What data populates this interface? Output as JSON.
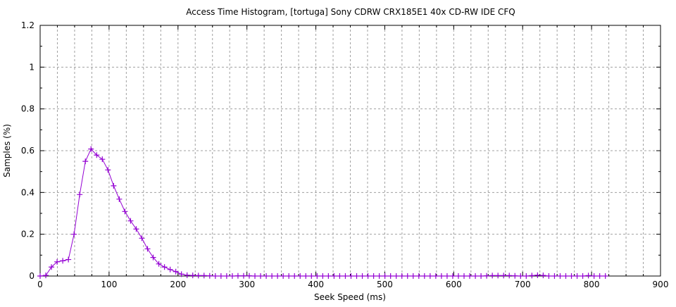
{
  "chart_data": {
    "type": "line",
    "title": "Access Time Histogram, [tortuga] Sony CDRW CRX185E1 40x CD-RW IDE CFQ",
    "xlabel": "Seek Speed (ms)",
    "ylabel": "Samples (%)",
    "xlim": [
      0,
      900
    ],
    "ylim": [
      0,
      1.2
    ],
    "xticks": [
      "0",
      "100",
      "200",
      "300",
      "400",
      "500",
      "600",
      "700",
      "800",
      "900"
    ],
    "yticks": [
      "0",
      "0.2",
      "0.4",
      "0.6",
      "0.8",
      "1",
      "1.2"
    ],
    "grid": true,
    "marker": "plus",
    "color": "#9400d3",
    "x_step": 8.2,
    "series": [
      {
        "values": [
          0,
          0.003,
          0.043,
          0.068,
          0.073,
          0.079,
          0.2,
          0.39,
          0.549,
          0.608,
          0.579,
          0.559,
          0.508,
          0.432,
          0.368,
          0.309,
          0.264,
          0.225,
          0.181,
          0.13,
          0.089,
          0.058,
          0.043,
          0.031,
          0.021,
          0.009,
          0.004,
          0.003,
          0.002,
          0.002,
          0.001,
          0,
          0,
          0,
          0,
          0.001,
          0.001,
          0.001,
          0,
          0,
          0,
          0,
          0,
          0,
          0,
          0,
          0,
          0,
          0,
          0,
          0,
          0,
          0,
          0,
          0,
          0,
          0,
          0,
          0,
          0,
          0,
          0,
          0,
          0,
          0,
          0,
          0,
          0,
          0,
          0,
          0,
          0,
          0,
          0,
          0,
          0,
          0,
          0,
          0,
          0.001,
          0.002,
          0.002,
          0.002,
          0.002,
          0.001,
          0,
          0,
          0.002,
          0.004,
          0.003,
          0,
          0,
          0,
          0,
          0,
          0,
          0,
          0.002,
          0,
          0,
          0
        ]
      }
    ]
  }
}
